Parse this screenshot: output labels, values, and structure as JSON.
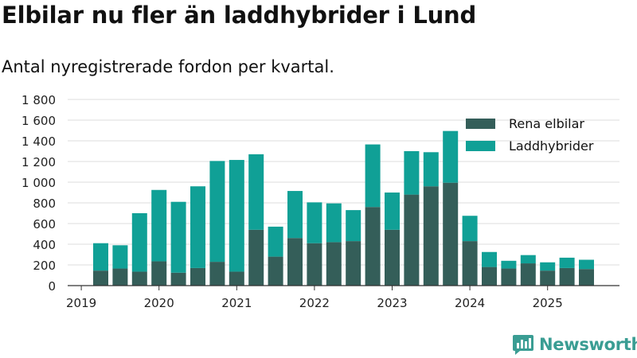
{
  "title": "Elbilar nu fler än laddhybrider i Lund",
  "subtitle": "Antal nyregistrerade fordon per kvartal.",
  "brand": {
    "name": "Newsworthy",
    "logo_icon": "bar-chart-logo-icon",
    "color": "#3a9d93"
  },
  "colors": {
    "elbilar": "#345e59",
    "laddhybrider": "#10a096",
    "grid": "#dddddd",
    "axis": "#333333",
    "text": "#222222"
  },
  "chart_data": {
    "type": "bar",
    "stacked": true,
    "title": "Elbilar nu fler än laddhybrider i Lund",
    "subtitle": "Antal nyregistrerade fordon per kvartal.",
    "xlabel": "",
    "ylabel": "",
    "ylim": [
      0,
      1800
    ],
    "yticks": [
      0,
      200,
      400,
      600,
      800,
      1000,
      1200,
      1400,
      1600,
      1800
    ],
    "ytick_labels": [
      "0",
      "200",
      "400",
      "600",
      "800",
      "1 000",
      "1 200",
      "1 400",
      "1 600",
      "1 800"
    ],
    "xticks": [
      "2019",
      "2020",
      "2021",
      "2022",
      "2023",
      "2024",
      "2025"
    ],
    "grid": true,
    "legend_position": "top-right",
    "categories": [
      "2019-Q2",
      "2019-Q3",
      "2019-Q4",
      "2020-Q1",
      "2020-Q2",
      "2020-Q3",
      "2020-Q4",
      "2021-Q1",
      "2021-Q2",
      "2021-Q3",
      "2021-Q4",
      "2022-Q1",
      "2022-Q2",
      "2022-Q3",
      "2022-Q4",
      "2023-Q1",
      "2023-Q2",
      "2023-Q3",
      "2023-Q4",
      "2024-Q1",
      "2024-Q2",
      "2024-Q3",
      "2024-Q4",
      "2025-Q1",
      "2025-Q2",
      "2025-Q3"
    ],
    "series": [
      {
        "name": "Rena elbilar",
        "color": "#345e59",
        "values": [
          145,
          165,
          135,
          235,
          125,
          170,
          230,
          135,
          540,
          280,
          460,
          410,
          420,
          430,
          760,
          540,
          880,
          960,
          995,
          430,
          180,
          165,
          215,
          145,
          170,
          160
        ]
      },
      {
        "name": "Laddhybrider",
        "color": "#10a096",
        "values": [
          265,
          225,
          565,
          690,
          685,
          790,
          975,
          1080,
          730,
          290,
          455,
          395,
          375,
          300,
          605,
          360,
          420,
          330,
          500,
          245,
          145,
          75,
          80,
          80,
          100,
          90
        ]
      }
    ]
  }
}
